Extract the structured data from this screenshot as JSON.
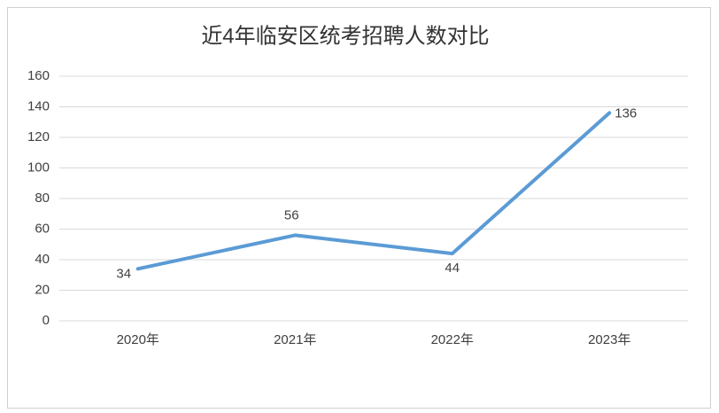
{
  "chart_data": {
    "type": "line",
    "title": "近4年临安区统考招聘人数对比",
    "categories": [
      "2020年",
      "2021年",
      "2022年",
      "2023年"
    ],
    "values": [
      34,
      56,
      44,
      136
    ],
    "color": "#5b9bd5",
    "ylim": [
      0,
      160
    ],
    "yticks": [
      0,
      20,
      40,
      60,
      80,
      100,
      120,
      140,
      160
    ],
    "grid": true
  }
}
